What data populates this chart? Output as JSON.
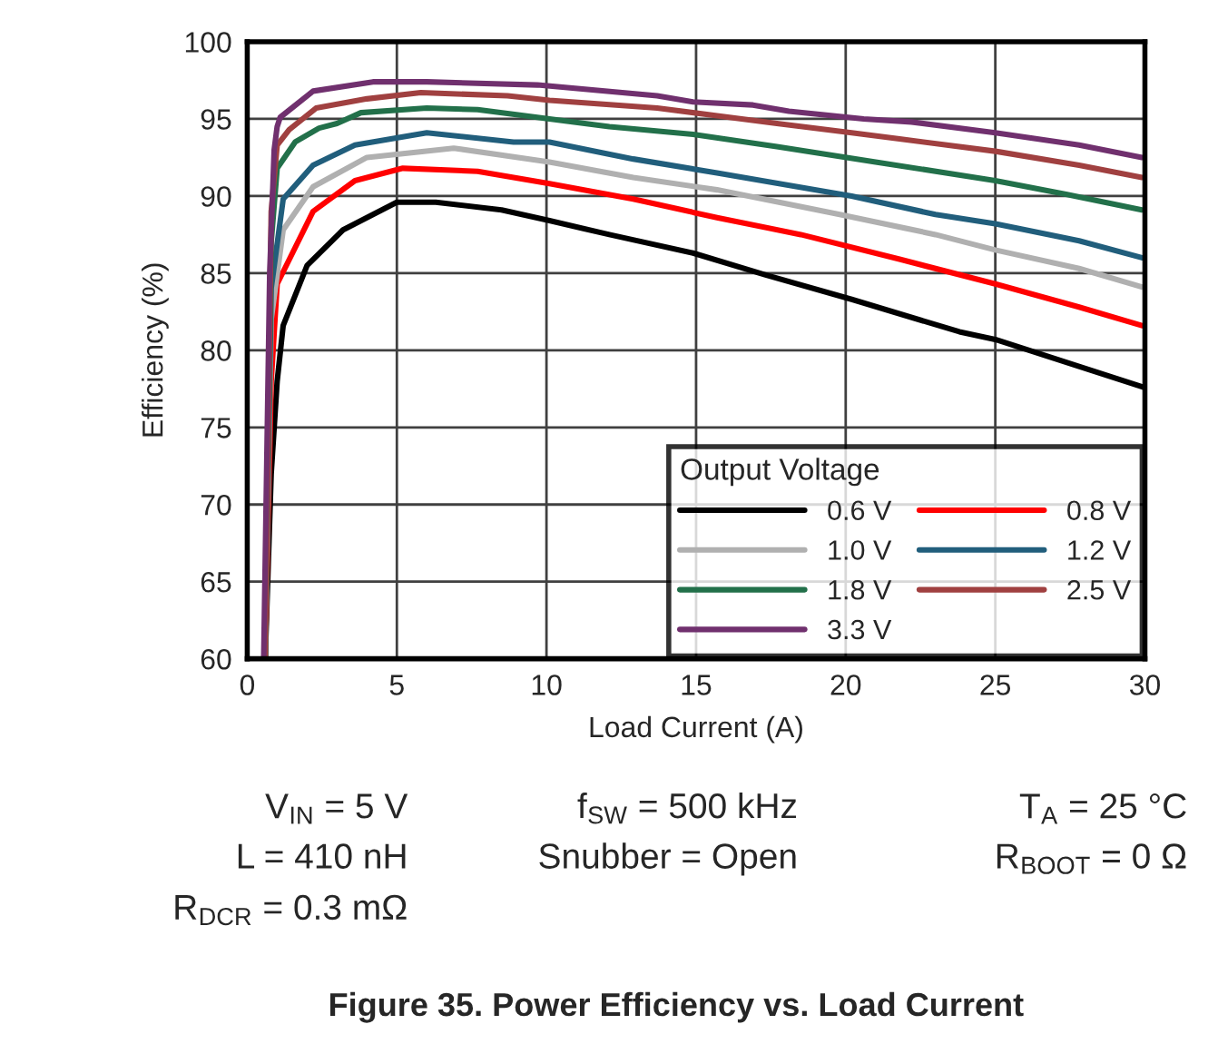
{
  "chart_data": {
    "type": "line",
    "title": "Figure 35. Power Efficiency vs. Load Current",
    "xlabel": "Load Current (A)",
    "ylabel": "Efficiency (%)",
    "legend_title": "Output Voltage",
    "xlim": [
      0,
      30
    ],
    "xticks": [
      0,
      5,
      10,
      15,
      20,
      25,
      30
    ],
    "ylim": [
      60,
      100
    ],
    "yticks": [
      60,
      65,
      70,
      75,
      80,
      85,
      90,
      95,
      100
    ],
    "grid": true,
    "legend": "bottom right",
    "marker": "none",
    "line_style": "solid",
    "series": [
      {
        "name": "0.6 V",
        "color": "#000000",
        "x": [
          0.6,
          0.8,
          1.0,
          1.2,
          2.0,
          3.2,
          5.0,
          6.3,
          8.5,
          10.1,
          12.1,
          14.9,
          17.3,
          20.2,
          23.8,
          25.0,
          29.96
        ],
        "values": [
          60,
          72,
          78,
          81.6,
          85.5,
          87.8,
          89.6,
          89.6,
          89.1,
          88.4,
          87.5,
          86.3,
          84.9,
          83.3,
          81.2,
          80.7,
          77.6
        ]
      },
      {
        "name": "0.8 V",
        "color": "#ff0000",
        "x": [
          0.6,
          0.8,
          1.0,
          2.2,
          3.6,
          5.2,
          7.7,
          10.1,
          12.9,
          15.7,
          18.5,
          21.8,
          25.0,
          27.8,
          29.9
        ],
        "values": [
          60,
          78,
          84.3,
          89.0,
          91.0,
          91.8,
          91.6,
          90.8,
          89.8,
          88.6,
          87.5,
          85.9,
          84.3,
          82.8,
          81.6
        ]
      },
      {
        "name": "1.0 V",
        "color": "#b0b0b0",
        "x": [
          0.6,
          0.8,
          1.2,
          2.2,
          4.0,
          6.9,
          10.1,
          12.9,
          15.7,
          19.8,
          23.0,
          25.0,
          27.8,
          29.9
        ],
        "values": [
          60,
          82,
          87.8,
          90.6,
          92.5,
          93.1,
          92.2,
          91.2,
          90.4,
          88.8,
          87.5,
          86.5,
          85.3,
          84.1
        ]
      },
      {
        "name": "1.2 V",
        "color": "#215e7c",
        "x": [
          0.6,
          0.8,
          1.2,
          2.2,
          3.6,
          6.0,
          8.9,
          10.1,
          12.9,
          15.7,
          20.2,
          23.0,
          25.0,
          27.8,
          29.9
        ],
        "values": [
          60,
          84,
          89.8,
          92.0,
          93.3,
          94.1,
          93.5,
          93.5,
          92.4,
          91.5,
          90.0,
          88.8,
          88.2,
          87.1,
          86.0
        ]
      },
      {
        "name": "1.8 V",
        "color": "#22704a",
        "x": [
          0.6,
          0.8,
          1.0,
          1.6,
          2.4,
          3.0,
          3.8,
          6.0,
          7.7,
          10.1,
          12.1,
          14.9,
          17.7,
          21.0,
          25.0,
          27.4,
          29.9
        ],
        "values": [
          60,
          87,
          91.8,
          93.5,
          94.4,
          94.7,
          95.4,
          95.7,
          95.6,
          95.0,
          94.5,
          94.0,
          93.2,
          92.2,
          91.0,
          90.1,
          89.1
        ]
      },
      {
        "name": "2.5 V",
        "color": "#a04040",
        "x": [
          0.6,
          0.8,
          1.0,
          1.4,
          2.3,
          4.0,
          5.8,
          8.7,
          10.1,
          13.7,
          15.7,
          17.7,
          20.2,
          21.8,
          25.0,
          27.8,
          29.9
        ],
        "values": [
          60,
          89,
          93.3,
          94.3,
          95.7,
          96.3,
          96.7,
          96.5,
          96.2,
          95.7,
          95.2,
          94.7,
          94.1,
          93.7,
          92.9,
          92.0,
          91.2
        ]
      },
      {
        "name": "3.3 V",
        "color": "#70306e",
        "x": [
          0.55,
          0.75,
          0.9,
          1.0,
          1.1,
          2.2,
          4.2,
          6.0,
          9.7,
          13.7,
          14.9,
          16.9,
          18.1,
          20.6,
          22.2,
          25.0,
          27.8,
          29.9
        ],
        "values": [
          60,
          85,
          93,
          94.5,
          95.1,
          96.8,
          97.4,
          97.4,
          97.2,
          96.5,
          96.1,
          95.9,
          95.5,
          95.0,
          94.8,
          94.1,
          93.3,
          92.5
        ]
      }
    ],
    "annotations": [
      "V$_{IN}$ = 5 V",
      "f$_{SW}$ = 500 kHz",
      "T$_{A}$ = 25 °C",
      "L = 410 nH",
      "Snubber = Open",
      "R$_{BOOT}$ = 0 Ω",
      "R$_{DCR}$ = 0.3 mΩ"
    ]
  }
}
